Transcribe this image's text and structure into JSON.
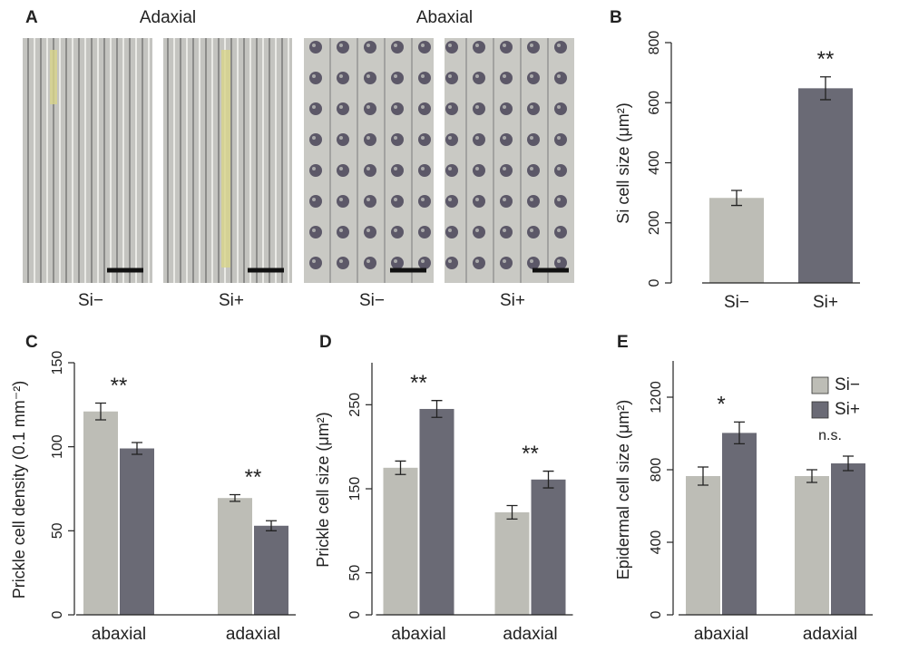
{
  "panel_a": {
    "label": "A",
    "groups": [
      "Adaxial",
      "Abaxial"
    ],
    "images": [
      "Si−",
      "Si+",
      "Si−",
      "Si+"
    ]
  },
  "chart_data": [
    {
      "type": "bar",
      "label": "B",
      "y_label": "Si cell size (μm²)",
      "categories": [
        "Si−",
        "Si+"
      ],
      "values": [
        283,
        648
      ],
      "errors": [
        25,
        38
      ],
      "colors": [
        "#bdbdb6",
        "#6a6a75"
      ],
      "ylim": [
        0,
        800
      ],
      "yticks": [
        0,
        200,
        400,
        600,
        800
      ],
      "annotations": [
        {
          "text": "**",
          "category": "Si+"
        }
      ]
    },
    {
      "type": "grouped_bar",
      "label": "C",
      "y_label": "Prickle cell density (0.1 mm⁻²)",
      "categories": [
        "abaxial",
        "adaxial"
      ],
      "series": [
        {
          "name": "Si−",
          "color": "#bdbdb6",
          "values": [
            121,
            69.5
          ],
          "errors": [
            5,
            2
          ]
        },
        {
          "name": "Si+",
          "color": "#6a6a75",
          "values": [
            99,
            53
          ],
          "errors": [
            3.5,
            3
          ]
        }
      ],
      "ylim": [
        0,
        150
      ],
      "yticks": [
        0,
        50,
        100,
        150
      ],
      "annotations": [
        {
          "text": "**",
          "category": "abaxial"
        },
        {
          "text": "**",
          "category": "adaxial"
        }
      ]
    },
    {
      "type": "grouped_bar",
      "label": "D",
      "y_label": "Prickle cell size (μm²)",
      "categories": [
        "abaxial",
        "adaxial"
      ],
      "series": [
        {
          "name": "Si−",
          "color": "#bdbdb6",
          "values": [
            175,
            122
          ],
          "errors": [
            8,
            8
          ]
        },
        {
          "name": "Si+",
          "color": "#6a6a75",
          "values": [
            245,
            161
          ],
          "errors": [
            10,
            10
          ]
        }
      ],
      "ylim": [
        0,
        300
      ],
      "yticks": [
        0,
        50,
        150,
        250
      ],
      "annotations": [
        {
          "text": "**",
          "category": "abaxial"
        },
        {
          "text": "**",
          "category": "adaxial"
        }
      ]
    },
    {
      "type": "grouped_bar",
      "label": "E",
      "y_label": "Epidermal cell size (μm²)",
      "categories": [
        "abaxial",
        "adaxial"
      ],
      "series": [
        {
          "name": "Si−",
          "color": "#bdbdb6",
          "values": [
            765,
            765
          ],
          "errors": [
            50,
            35
          ]
        },
        {
          "name": "Si+",
          "color": "#6a6a75",
          "values": [
            1003,
            835
          ],
          "errors": [
            60,
            40
          ]
        }
      ],
      "ylim": [
        0,
        1400
      ],
      "yticks": [
        0,
        400,
        800,
        1200
      ],
      "legend": "top-right",
      "annotations": [
        {
          "text": "*",
          "category": "abaxial"
        },
        {
          "text": "n.s.",
          "category": "adaxial"
        }
      ]
    }
  ]
}
